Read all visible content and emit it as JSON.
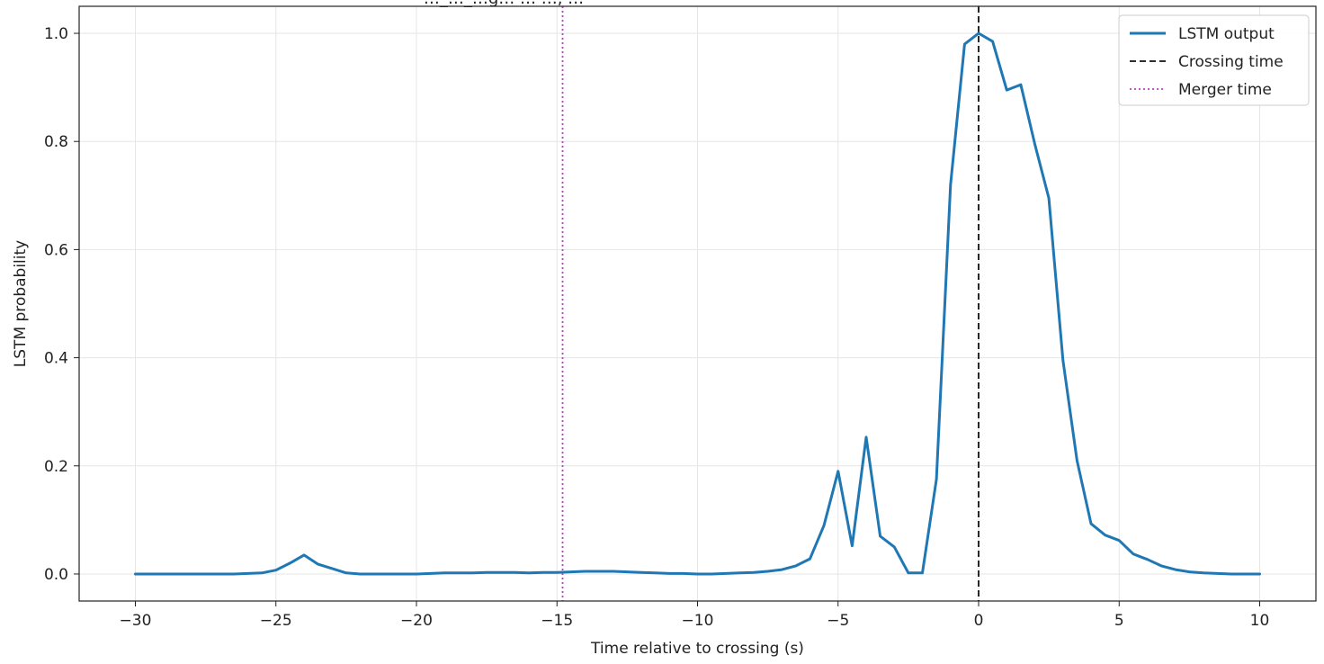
{
  "chart_data": {
    "type": "line",
    "title": "…_…_…g… … …, …",
    "xlabel": "Time relative to crossing (s)",
    "ylabel": "LSTM probability",
    "xlim": [
      -32,
      12
    ],
    "ylim": [
      -0.05,
      1.05
    ],
    "xticks": [
      -30,
      -25,
      -20,
      -15,
      -10,
      -5,
      0,
      5,
      10
    ],
    "yticks": [
      0.0,
      0.2,
      0.4,
      0.6,
      0.8,
      1.0
    ],
    "xtick_labels": [
      "−30",
      "−25",
      "−20",
      "−15",
      "−10",
      "−5",
      "0",
      "5",
      "10"
    ],
    "ytick_labels": [
      "0.0",
      "0.2",
      "0.4",
      "0.6",
      "0.8",
      "1.0"
    ],
    "grid": true,
    "legend_position": "top-right",
    "series": [
      {
        "name": "LSTM output",
        "color": "#1f77b4",
        "style": "solid",
        "x": [
          -30,
          -29.5,
          -29,
          -28.5,
          -28,
          -27.5,
          -27,
          -26.5,
          -26,
          -25.5,
          -25,
          -24.5,
          -24,
          -23.5,
          -23,
          -22.5,
          -22,
          -21.5,
          -21,
          -20.5,
          -20,
          -19.5,
          -19,
          -18.5,
          -18,
          -17.5,
          -17,
          -16.5,
          -16,
          -15.5,
          -15,
          -14.5,
          -14,
          -13.5,
          -13,
          -12.5,
          -12,
          -11.5,
          -11,
          -10.5,
          -10,
          -9.5,
          -9,
          -8.5,
          -8,
          -7.5,
          -7,
          -6.5,
          -6,
          -5.5,
          -5,
          -4.5,
          -4,
          -3.5,
          -3,
          -2.5,
          -2,
          -1.5,
          -1,
          -0.5,
          0,
          0.5,
          1,
          1.5,
          2,
          2.5,
          3,
          3.5,
          4,
          4.5,
          5,
          5.5,
          6,
          6.5,
          7,
          7.5,
          8,
          8.5,
          9,
          9.5,
          10
        ],
        "y": [
          0.0,
          0.0,
          0.0,
          0.0,
          0.0,
          0.0,
          0.0,
          0.0,
          0.001,
          0.002,
          0.007,
          0.02,
          0.035,
          0.018,
          0.01,
          0.002,
          0.0,
          0.0,
          0.0,
          0.0,
          0.0,
          0.001,
          0.002,
          0.002,
          0.002,
          0.003,
          0.003,
          0.003,
          0.002,
          0.003,
          0.003,
          0.004,
          0.005,
          0.005,
          0.005,
          0.004,
          0.003,
          0.002,
          0.001,
          0.001,
          0.0,
          0.0,
          0.001,
          0.002,
          0.003,
          0.005,
          0.008,
          0.015,
          0.028,
          0.09,
          0.19,
          0.052,
          0.253,
          0.07,
          0.05,
          0.002,
          0.002,
          0.175,
          0.72,
          0.98,
          1.0,
          0.985,
          0.895,
          0.905,
          0.795,
          0.695,
          0.395,
          0.21,
          0.093,
          0.072,
          0.062,
          0.037,
          0.027,
          0.015,
          0.008,
          0.004,
          0.002,
          0.001,
          0.0,
          0.0,
          0.0
        ]
      },
      {
        "name": "Crossing time",
        "color": "#111111",
        "style": "dashed",
        "x_value": 0
      },
      {
        "name": "Merger time",
        "color": "#bf3fbf",
        "style": "dotted",
        "x_value": -14.8
      }
    ]
  }
}
